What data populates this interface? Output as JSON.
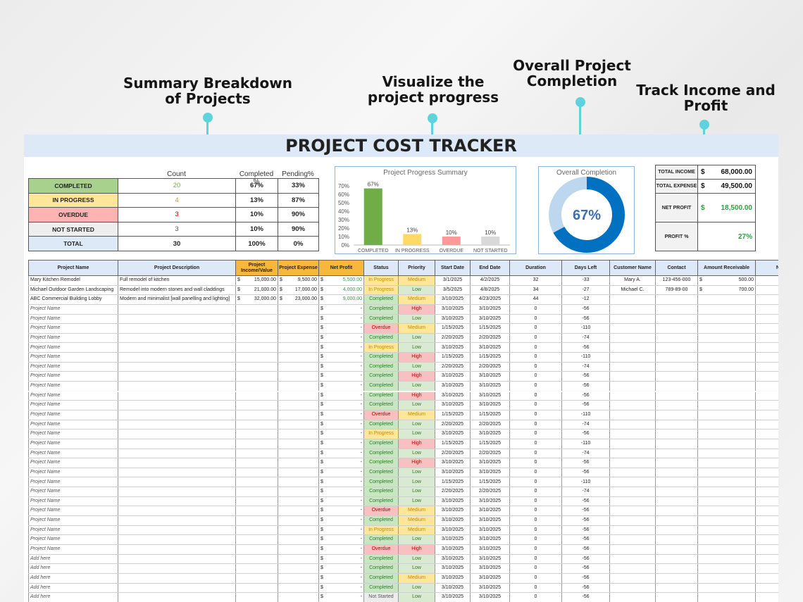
{
  "callouts": [
    {
      "text": "Summary Breakdown\nof Projects"
    },
    {
      "text": "Visualize the\nproject progress"
    },
    {
      "text": "Overall Project\nCompletion"
    },
    {
      "text": "Track Income and\nProfit"
    }
  ],
  "title": "PROJECT COST TRACKER",
  "summary": {
    "headers": {
      "count": "Count",
      "completed_pct": "Completed %",
      "pending_pct": "Pending%"
    },
    "rows": [
      {
        "label": "COMPLETED",
        "count": "20",
        "completed_pct": "67%",
        "pending_pct": "33%",
        "bg": "#a9d18e",
        "count_color": "#70ad47"
      },
      {
        "label": "IN PROGRESS",
        "count": "4",
        "completed_pct": "13%",
        "pending_pct": "87%",
        "bg": "#ffe699",
        "count_color": "#d4a017"
      },
      {
        "label": "OVERDUE",
        "count": "3",
        "completed_pct": "10%",
        "pending_pct": "90%",
        "bg": "#ffb3b3",
        "count_color": "#c00000"
      },
      {
        "label": "NOT STARTED",
        "count": "3",
        "completed_pct": "10%",
        "pending_pct": "90%",
        "bg": "#eeeeee",
        "count_color": "#555555"
      },
      {
        "label": "TOTAL",
        "count": "30",
        "completed_pct": "100%",
        "pending_pct": "0%",
        "bg": "#dde9f6",
        "count_color": "#222222"
      }
    ]
  },
  "chart_data": [
    {
      "type": "bar",
      "title": "Project Progress Summary",
      "categories": [
        "COMPLETED",
        "IN PROGRESS",
        "OVERDUE",
        "NOT STARTED"
      ],
      "values": [
        67,
        13,
        10,
        10
      ],
      "value_labels": [
        "67%",
        "13%",
        "10%",
        "10%"
      ],
      "colors": [
        "#70ad47",
        "#ffd966",
        "#ff9999",
        "#d9d9d9"
      ],
      "ylim": [
        0,
        70
      ],
      "yticks": [
        "0%",
        "10%",
        "20%",
        "30%",
        "40%",
        "50%",
        "60%",
        "70%"
      ]
    },
    {
      "type": "pie",
      "title": "Overall Completion",
      "value": 67,
      "label": "67%",
      "colors": [
        "#0070c0",
        "#bdd7ee"
      ]
    }
  ],
  "finance": [
    {
      "label": "TOTAL INCOME",
      "currency": "$",
      "value": "68,000.00",
      "color": "#111111"
    },
    {
      "label": "TOTAL EXPENSE",
      "currency": "$",
      "value": "49,500.00",
      "color": "#111111"
    },
    {
      "label": "NET PROFIT",
      "currency": "$",
      "value": "18,500.00",
      "color": "#2e9e3e"
    },
    {
      "label": "PROFIT %",
      "currency": "",
      "value": "27%",
      "color": "#2e9e3e"
    }
  ],
  "table": {
    "headers": [
      "Project Name",
      "Project Description",
      "Project Income/Value",
      "Project Expense",
      "Net Profit",
      "Status",
      "Priority",
      "Start Date",
      "End Date",
      "Duration",
      "Days Left",
      "Customer Name",
      "Contact",
      "Amount Receivable",
      "No"
    ],
    "rows": [
      {
        "name": "Mary Kitchen Remodel",
        "desc": "Full remodel of kitchen",
        "income": "15,000.00",
        "expense": "9,500.00",
        "net": "5,500.00",
        "status": "In Progress",
        "priority": "Medium",
        "start": "3/1/2025",
        "end": "4/2/2025",
        "duration": "32",
        "days_left": "-33",
        "customer": "Mary A.",
        "contact": "123-456-000",
        "receivable": "500.00"
      },
      {
        "name": "Michael Outdoor Garden Landscaping",
        "desc": "Remodel into modern stones and wall claddings",
        "income": "21,000.00",
        "expense": "17,000.00",
        "net": "4,000.00",
        "status": "In Progress",
        "priority": "Low",
        "start": "3/5/2025",
        "end": "4/8/2025",
        "duration": "34",
        "days_left": "-27",
        "customer": "Michael C.",
        "contact": "789-89-00",
        "receivable": "700.00"
      },
      {
        "name": "ABC Commercial Building Lobby",
        "desc": "Modern and minimalist [wall panelling and lighting]",
        "income": "32,000.00",
        "expense": "23,000.00",
        "net": "9,000.00",
        "status": "Completed",
        "priority": "Medium",
        "start": "3/10/2025",
        "end": "4/23/2025",
        "duration": "44",
        "days_left": "-12",
        "customer": "",
        "contact": "",
        "receivable": ""
      },
      {
        "name": "Project Name",
        "status": "Completed",
        "priority": "High",
        "start": "3/10/2025",
        "end": "3/10/2025",
        "duration": "0",
        "days_left": "-56"
      },
      {
        "name": "Project Name",
        "status": "Completed",
        "priority": "Low",
        "start": "3/10/2025",
        "end": "3/10/2025",
        "duration": "0",
        "days_left": "-56"
      },
      {
        "name": "Project Name",
        "status": "Overdue",
        "priority": "Medium",
        "start": "1/15/2025",
        "end": "1/15/2025",
        "duration": "0",
        "days_left": "-110"
      },
      {
        "name": "Project Name",
        "status": "Completed",
        "priority": "Low",
        "start": "2/20/2025",
        "end": "2/20/2025",
        "duration": "0",
        "days_left": "-74"
      },
      {
        "name": "Project Name",
        "status": "In Progress",
        "priority": "Low",
        "start": "3/10/2025",
        "end": "3/10/2025",
        "duration": "0",
        "days_left": "-56"
      },
      {
        "name": "Project Name",
        "status": "Completed",
        "priority": "High",
        "start": "1/15/2025",
        "end": "1/15/2025",
        "duration": "0",
        "days_left": "-110"
      },
      {
        "name": "Project Name",
        "status": "Completed",
        "priority": "Low",
        "start": "2/20/2025",
        "end": "2/20/2025",
        "duration": "0",
        "days_left": "-74"
      },
      {
        "name": "Project Name",
        "status": "Completed",
        "priority": "High",
        "start": "3/10/2025",
        "end": "3/10/2025",
        "duration": "0",
        "days_left": "-56"
      },
      {
        "name": "Project Name",
        "status": "Completed",
        "priority": "Low",
        "start": "3/10/2025",
        "end": "3/10/2025",
        "duration": "0",
        "days_left": "-56"
      },
      {
        "name": "Project Name",
        "status": "Completed",
        "priority": "High",
        "start": "3/10/2025",
        "end": "3/10/2025",
        "duration": "0",
        "days_left": "-56"
      },
      {
        "name": "Project Name",
        "status": "Completed",
        "priority": "Low",
        "start": "3/10/2025",
        "end": "3/10/2025",
        "duration": "0",
        "days_left": "-56"
      },
      {
        "name": "Project Name",
        "status": "Overdue",
        "priority": "Medium",
        "start": "1/15/2025",
        "end": "1/15/2025",
        "duration": "0",
        "days_left": "-110"
      },
      {
        "name": "Project Name",
        "status": "Completed",
        "priority": "Low",
        "start": "2/20/2025",
        "end": "2/20/2025",
        "duration": "0",
        "days_left": "-74"
      },
      {
        "name": "Project Name",
        "status": "In Progress",
        "priority": "Low",
        "start": "3/10/2025",
        "end": "3/10/2025",
        "duration": "0",
        "days_left": "-56"
      },
      {
        "name": "Project Name",
        "status": "Completed",
        "priority": "High",
        "start": "1/15/2025",
        "end": "1/15/2025",
        "duration": "0",
        "days_left": "-110"
      },
      {
        "name": "Project Name",
        "status": "Completed",
        "priority": "Low",
        "start": "2/20/2025",
        "end": "2/20/2025",
        "duration": "0",
        "days_left": "-74"
      },
      {
        "name": "Project Name",
        "status": "Completed",
        "priority": "High",
        "start": "3/10/2025",
        "end": "3/10/2025",
        "duration": "0",
        "days_left": "-56"
      },
      {
        "name": "Project Name",
        "status": "Completed",
        "priority": "Low",
        "start": "3/10/2025",
        "end": "3/10/2025",
        "duration": "0",
        "days_left": "-56"
      },
      {
        "name": "Project Name",
        "status": "Completed",
        "priority": "Low",
        "start": "1/15/2025",
        "end": "1/15/2025",
        "duration": "0",
        "days_left": "-110"
      },
      {
        "name": "Project Name",
        "status": "Completed",
        "priority": "Low",
        "start": "2/20/2025",
        "end": "2/20/2025",
        "duration": "0",
        "days_left": "-74"
      },
      {
        "name": "Project Name",
        "status": "Completed",
        "priority": "Low",
        "start": "3/10/2025",
        "end": "3/10/2025",
        "duration": "0",
        "days_left": "-56"
      },
      {
        "name": "Project Name",
        "status": "Overdue",
        "priority": "Medium",
        "start": "3/10/2025",
        "end": "3/10/2025",
        "duration": "0",
        "days_left": "-56"
      },
      {
        "name": "Project Name",
        "status": "Completed",
        "priority": "Medium",
        "start": "3/10/2025",
        "end": "3/10/2025",
        "duration": "0",
        "days_left": "-56"
      },
      {
        "name": "Project Name",
        "status": "In Progress",
        "priority": "Medium",
        "start": "3/10/2025",
        "end": "3/10/2025",
        "duration": "0",
        "days_left": "-56"
      },
      {
        "name": "Project Name",
        "status": "Completed",
        "priority": "Low",
        "start": "3/10/2025",
        "end": "3/10/2025",
        "duration": "0",
        "days_left": "-56"
      },
      {
        "name": "Project Name",
        "status": "Overdue",
        "priority": "High",
        "start": "3/10/2025",
        "end": "3/10/2025",
        "duration": "0",
        "days_left": "-56"
      },
      {
        "name": "Add here",
        "status": "Completed",
        "priority": "Low",
        "start": "3/10/2025",
        "end": "3/10/2025",
        "duration": "0",
        "days_left": "-56"
      },
      {
        "name": "Add here",
        "status": "Completed",
        "priority": "Low",
        "start": "3/10/2025",
        "end": "3/10/2025",
        "duration": "0",
        "days_left": "-56"
      },
      {
        "name": "Add here",
        "status": "Completed",
        "priority": "Medium",
        "start": "3/10/2025",
        "end": "3/10/2025",
        "duration": "0",
        "days_left": "-56"
      },
      {
        "name": "Add here",
        "status": "Completed",
        "priority": "Low",
        "start": "3/10/2025",
        "end": "3/10/2025",
        "duration": "0",
        "days_left": "-56"
      },
      {
        "name": "Add here",
        "status": "Not Started",
        "priority": "Low",
        "start": "3/10/2025",
        "end": "3/10/2025",
        "duration": "0",
        "days_left": "-56"
      }
    ],
    "dash": "-",
    "currency": "$"
  }
}
